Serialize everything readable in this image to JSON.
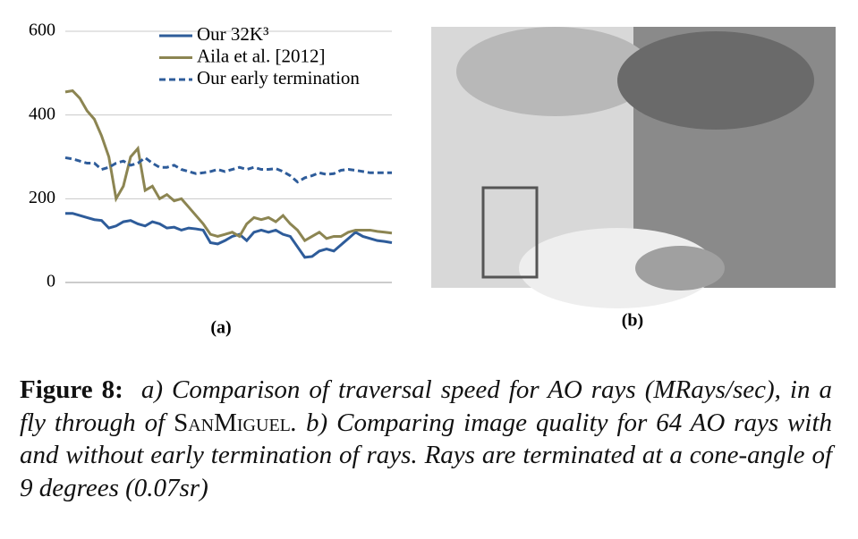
{
  "chart_data": {
    "type": "line",
    "categories": [
      null,
      null,
      null,
      null,
      null,
      null,
      null,
      null,
      null,
      null,
      null,
      null,
      null,
      null,
      null,
      null,
      null,
      null,
      null,
      null,
      null,
      null,
      null,
      null,
      null,
      null,
      null,
      null,
      null,
      null,
      null,
      null,
      null,
      null,
      null,
      null,
      null,
      null,
      null,
      null,
      null,
      null,
      null,
      null,
      null,
      null
    ],
    "series": [
      {
        "name": "Our 32K³",
        "color": "#2e5c9a",
        "dashed": false,
        "values": [
          165,
          165,
          160,
          155,
          150,
          148,
          130,
          135,
          145,
          148,
          140,
          135,
          145,
          140,
          130,
          132,
          125,
          130,
          128,
          125,
          95,
          92,
          100,
          110,
          115,
          100,
          120,
          125,
          120,
          125,
          115,
          110,
          85,
          60,
          62,
          75,
          80,
          75,
          90,
          105,
          120,
          110,
          105,
          100,
          98,
          95
        ]
      },
      {
        "name": "Aila et al. [2012]",
        "color": "#8c8552",
        "dashed": false,
        "values": [
          455,
          458,
          440,
          410,
          390,
          350,
          300,
          200,
          230,
          300,
          320,
          220,
          230,
          200,
          210,
          195,
          200,
          180,
          160,
          140,
          115,
          110,
          115,
          120,
          110,
          140,
          155,
          150,
          155,
          145,
          160,
          140,
          125,
          100,
          110,
          120,
          105,
          110,
          110,
          120,
          125,
          125,
          125,
          122,
          120,
          118
        ]
      },
      {
        "name": "Our early termination",
        "color": "#2e5c9a",
        "dashed": true,
        "values": [
          298,
          295,
          290,
          285,
          285,
          270,
          275,
          285,
          290,
          280,
          285,
          298,
          285,
          275,
          275,
          280,
          270,
          265,
          260,
          262,
          265,
          270,
          265,
          270,
          275,
          270,
          275,
          270,
          270,
          272,
          265,
          255,
          240,
          250,
          255,
          262,
          258,
          260,
          268,
          270,
          268,
          265,
          262,
          262,
          262,
          262
        ]
      }
    ],
    "ylim": [
      0,
      600
    ],
    "yticks": [
      0,
      200,
      400,
      600
    ],
    "grid": true,
    "legend": "top-right"
  },
  "panels": {
    "a": "(a)",
    "b": "(b)"
  },
  "caption": {
    "label": "Figure 8:",
    "text1": "a) Comparison of traversal speed for AO rays (MRays/sec), in a fly through of ",
    "name": "SanMiguel",
    "text2": ". b) Comparing image quality for 64 AO rays with and without early termination of rays. Rays are terminated at a cone-angle of 9 degrees (0.07sr)"
  }
}
